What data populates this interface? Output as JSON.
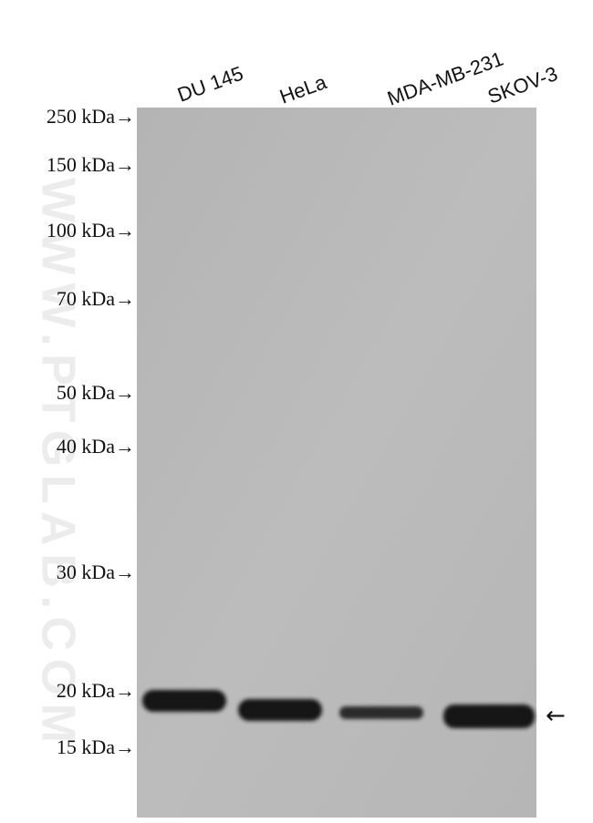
{
  "lanes": [
    "DU 145",
    "HeLa",
    "MDA-MB-231",
    "SKOV-3"
  ],
  "markers": [
    "250 kDa→",
    "150 kDa→",
    "100 kDa→",
    "70 kDa→",
    "50 kDa→",
    "40 kDa→",
    "30 kDa→",
    "20 kDa→",
    "15 kDa→"
  ],
  "watermark": "WWW.PTGLAB.COM",
  "band_arrow": "←"
}
